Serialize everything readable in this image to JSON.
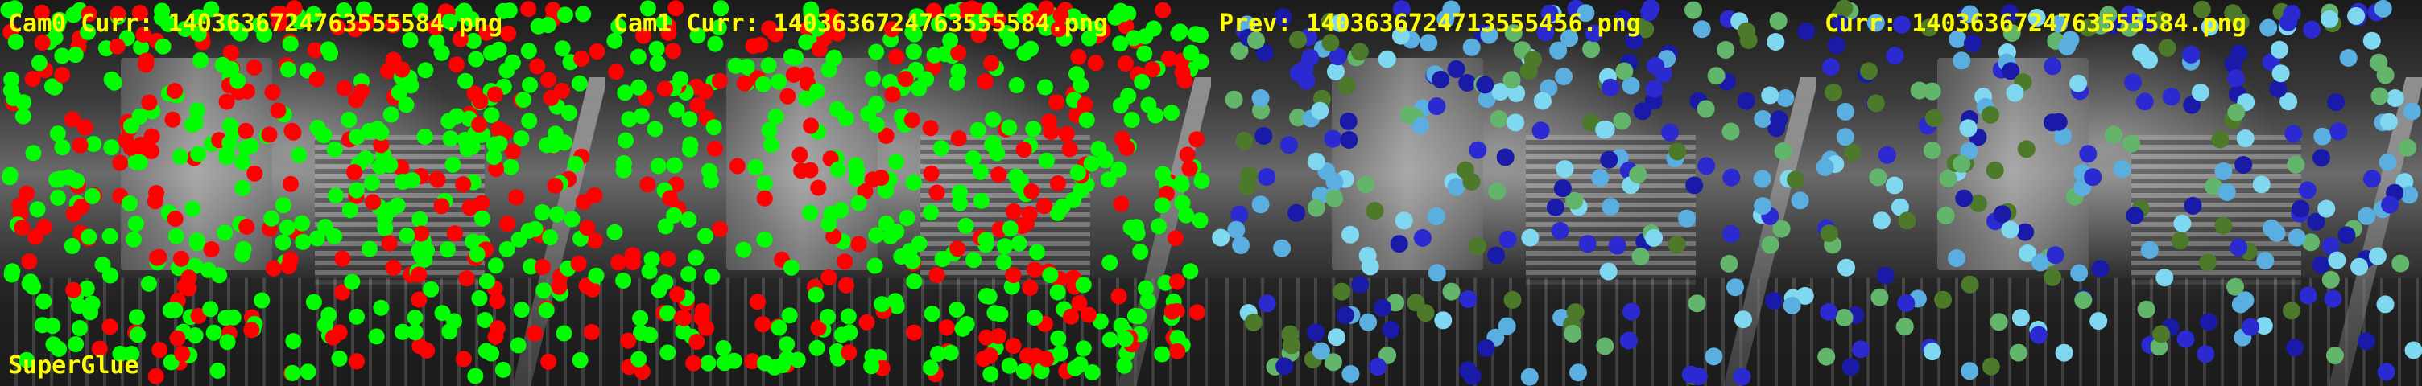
{
  "panels": [
    {
      "title": "Cam0 Curr: 1403636724763555584.png",
      "footer": "SuperGlue",
      "style": "stereo"
    },
    {
      "title": "Cam1 Curr: 1403636724763555584.png",
      "footer": "",
      "style": "stereo"
    },
    {
      "title": "Prev: 1403636724713555456.png",
      "footer": "",
      "style": "tracked"
    },
    {
      "title": "Curr: 1403636724763555584.png",
      "footer": "",
      "style": "tracked"
    }
  ],
  "colors": {
    "label": "#ffff00",
    "stereo_matched": "#00ff00",
    "stereo_unmatched": "#ff0000",
    "tracked": [
      "#1a1aa8",
      "#2a2ad0",
      "#4c7a2a",
      "#63b56b",
      "#7fd8f0",
      "#5aaee0"
    ]
  }
}
